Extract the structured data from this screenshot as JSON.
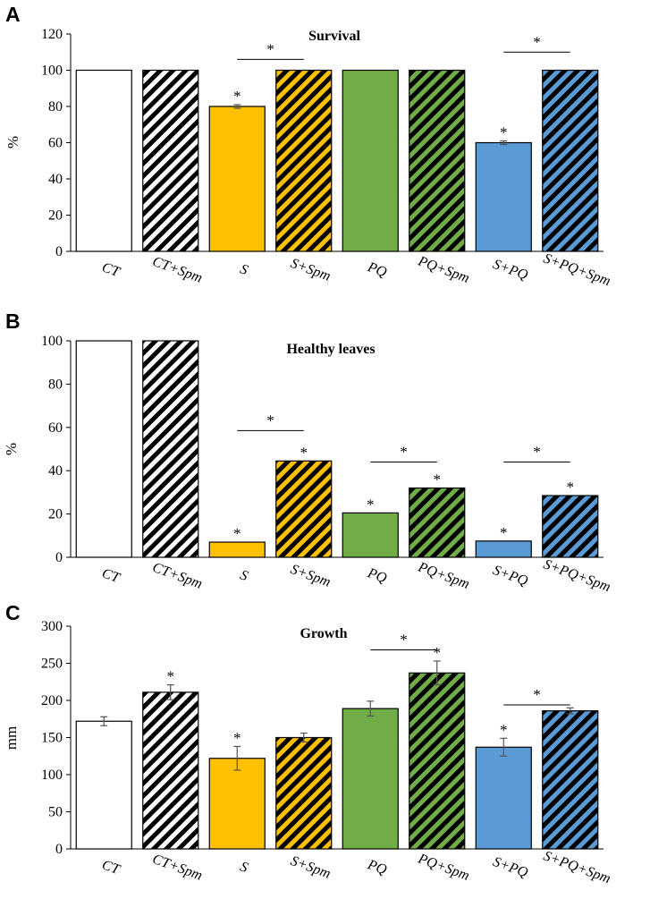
{
  "colors": {
    "CT": "#ffffff",
    "S": "#ffc000",
    "PQ": "#70ad47",
    "S+PQ": "#5b9bd5",
    "stroke": "#000000",
    "error_bar": "#555555",
    "hatch": "#000000"
  },
  "chart_data": [
    {
      "panel": "A",
      "type": "bar",
      "title": "Survival",
      "xlabel": "",
      "ylabel": "%",
      "ylim": [
        0,
        120
      ],
      "yticks": [
        0,
        20,
        40,
        60,
        80,
        100,
        120
      ],
      "categories": [
        "CT",
        "CT+Spm",
        "S",
        "S+Spm",
        "PQ",
        "PQ+Spm",
        "S+PQ",
        "S+PQ+Spm"
      ],
      "values": [
        100,
        100,
        80,
        100,
        100,
        100,
        60,
        100
      ],
      "errors": [
        0,
        0,
        1,
        0,
        0,
        0,
        1,
        0
      ],
      "hatched": [
        false,
        true,
        false,
        true,
        false,
        true,
        false,
        true
      ],
      "color_groups": [
        "CT",
        "CT",
        "S",
        "S",
        "PQ",
        "PQ",
        "S+PQ",
        "S+PQ"
      ],
      "bar_stars": [
        false,
        false,
        true,
        false,
        false,
        false,
        true,
        false
      ],
      "star_symbol": "*",
      "comparisons": [
        {
          "from": 2,
          "to": 3,
          "y": 106,
          "label": "*"
        },
        {
          "from": 6,
          "to": 7,
          "y": 110,
          "label": "*"
        }
      ]
    },
    {
      "panel": "B",
      "type": "bar",
      "title": "Healthy leaves",
      "xlabel": "",
      "ylabel": "%",
      "ylim": [
        0,
        100
      ],
      "yticks": [
        0,
        20,
        40,
        60,
        80,
        100
      ],
      "categories": [
        "CT",
        "CT+Spm",
        "S",
        "S+Spm",
        "PQ",
        "PQ+Spm",
        "S+PQ",
        "S+PQ+Spm"
      ],
      "values": [
        100,
        100,
        7,
        44.5,
        20.5,
        32,
        7.5,
        28.5
      ],
      "errors": [
        0,
        0,
        0,
        0,
        0,
        0,
        0,
        0
      ],
      "hatched": [
        false,
        true,
        false,
        true,
        false,
        true,
        false,
        true
      ],
      "color_groups": [
        "CT",
        "CT",
        "S",
        "S",
        "PQ",
        "PQ",
        "S+PQ",
        "S+PQ"
      ],
      "bar_stars": [
        false,
        false,
        true,
        true,
        true,
        true,
        true,
        true
      ],
      "star_symbol": "*",
      "comparisons": [
        {
          "from": 2,
          "to": 3,
          "y": 58.5,
          "label": "*"
        },
        {
          "from": 4,
          "to": 5,
          "y": 44,
          "label": "*"
        },
        {
          "from": 6,
          "to": 7,
          "y": 44,
          "label": "*"
        }
      ]
    },
    {
      "panel": "C",
      "type": "bar",
      "title": "Growth",
      "xlabel": "",
      "ylabel": "mm",
      "ylim": [
        0,
        300
      ],
      "yticks": [
        0,
        50,
        100,
        150,
        200,
        250,
        300
      ],
      "categories": [
        "CT",
        "CT+Spm",
        "S",
        "S+Spm",
        "PQ",
        "PQ+Spm",
        "S+PQ",
        "S+PQ+Spm"
      ],
      "values": [
        172,
        211,
        122,
        150,
        189,
        237,
        137,
        186
      ],
      "errors": [
        6,
        10,
        16,
        6,
        10,
        16,
        12,
        4
      ],
      "hatched": [
        false,
        true,
        false,
        true,
        false,
        true,
        false,
        true
      ],
      "color_groups": [
        "CT",
        "CT",
        "S",
        "S",
        "PQ",
        "PQ",
        "S+PQ",
        "S+PQ"
      ],
      "bar_stars": [
        false,
        true,
        true,
        false,
        false,
        true,
        true,
        false
      ],
      "star_symbol": "*",
      "comparisons": [
        {
          "from": 4,
          "to": 5,
          "y": 268,
          "label": "*"
        },
        {
          "from": 6,
          "to": 7,
          "y": 194,
          "label": "*"
        }
      ]
    }
  ]
}
